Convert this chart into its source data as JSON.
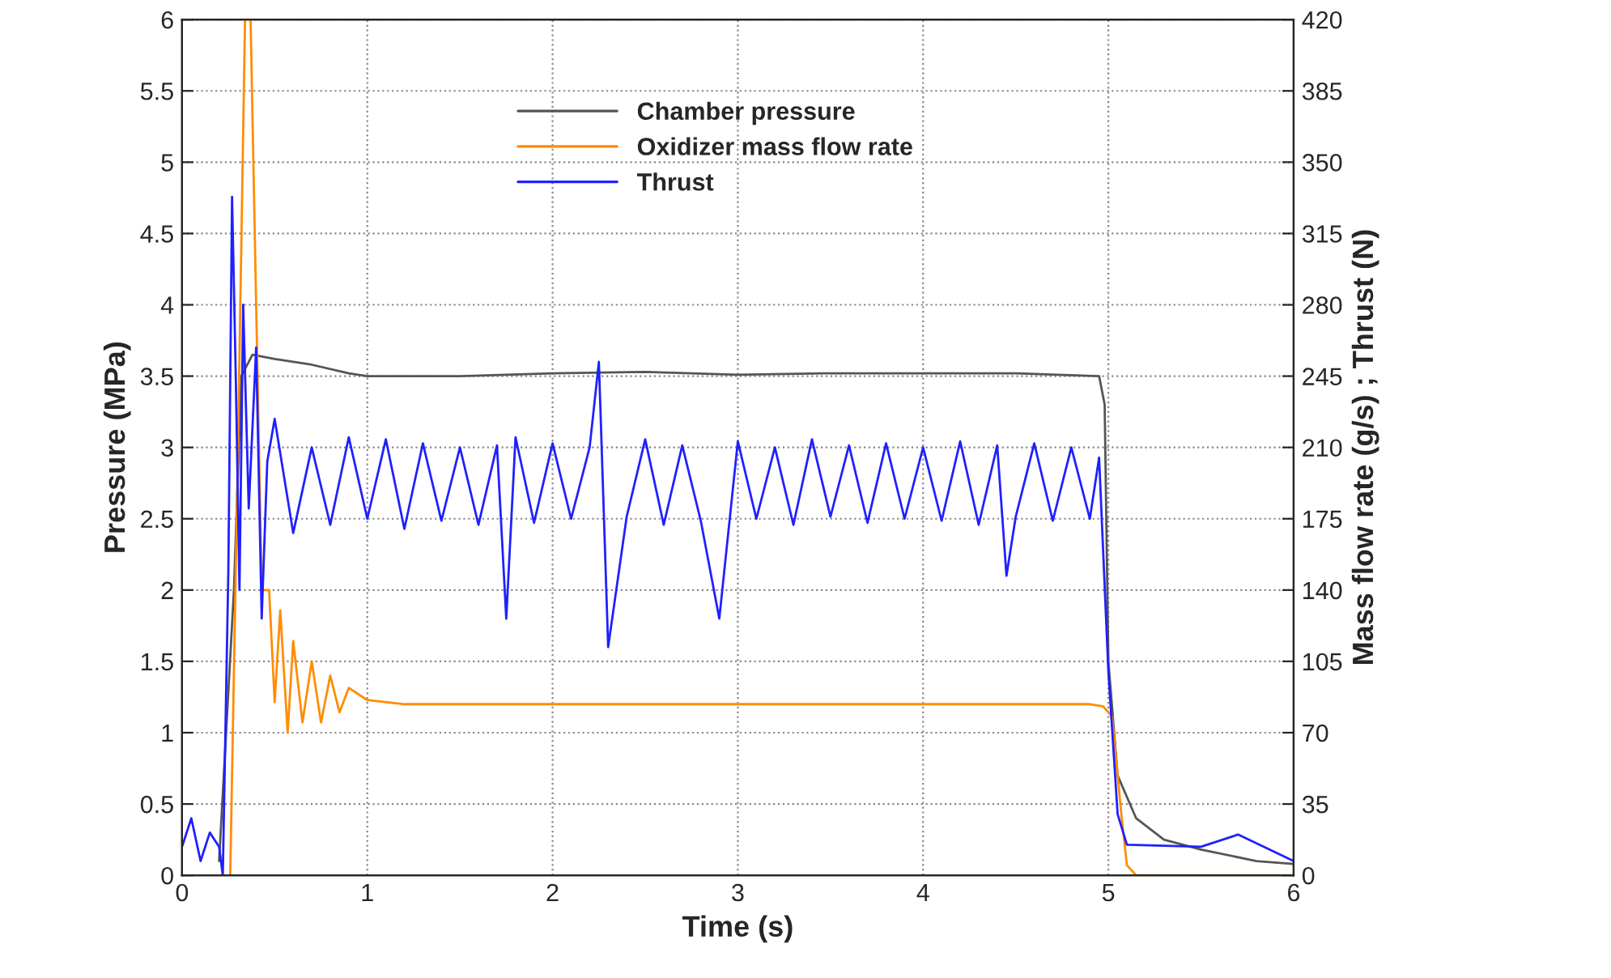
{
  "chart_data": {
    "type": "line",
    "xlabel": "Time (s)",
    "ylabel": "Pressure (MPa)",
    "y2label": "Mass flow rate (g/s) ; Thrust (N)",
    "xlim": [
      0,
      6
    ],
    "xticks": [
      0,
      1,
      2,
      3,
      4,
      5,
      6
    ],
    "ylim": [
      0,
      6
    ],
    "yticks": [
      0,
      0.5,
      1,
      1.5,
      2,
      2.5,
      3,
      3.5,
      4,
      4.5,
      5,
      5.5,
      6
    ],
    "y2lim": [
      0,
      420
    ],
    "y2ticks": [
      0,
      35,
      70,
      105,
      140,
      175,
      210,
      245,
      280,
      315,
      350,
      385,
      420
    ],
    "grid": true,
    "legend": "top",
    "marker": "none",
    "line_style": "solid",
    "series": [
      {
        "name": "Chamber pressure",
        "color": "#555555",
        "x": [
          0.2,
          0.28,
          0.32,
          0.38,
          0.5,
          0.7,
          0.9,
          1.0,
          1.5,
          2.0,
          2.5,
          3.0,
          3.5,
          4.0,
          4.5,
          4.95,
          4.98,
          5.0,
          5.05,
          5.15,
          5.3,
          5.5,
          5.8,
          6.0
        ],
        "values": [
          0.1,
          2.0,
          3.5,
          3.65,
          3.62,
          3.58,
          3.52,
          3.5,
          3.5,
          3.52,
          3.53,
          3.51,
          3.52,
          3.52,
          3.52,
          3.5,
          3.3,
          1.5,
          0.7,
          0.4,
          0.25,
          0.18,
          0.1,
          0.08
        ]
      },
      {
        "name": "Oxidizer mass flow rate",
        "color": "#ff8c00",
        "axis": "y2",
        "x": [
          0.26,
          0.3,
          0.34,
          0.37,
          0.4,
          0.43,
          0.47,
          0.5,
          0.53,
          0.57,
          0.6,
          0.65,
          0.7,
          0.75,
          0.8,
          0.85,
          0.9,
          1.0,
          1.2,
          1.5,
          2.0,
          2.5,
          3.0,
          3.5,
          4.0,
          4.5,
          4.9,
          4.97,
          5.02,
          5.07,
          5.1,
          5.15,
          6.0
        ],
        "values": [
          0,
          200,
          420,
          420,
          280,
          140,
          140,
          85,
          130,
          70,
          115,
          75,
          105,
          75,
          98,
          80,
          92,
          86,
          84,
          84,
          84,
          84,
          84,
          84,
          84,
          84,
          84,
          83,
          78,
          30,
          5,
          0,
          0
        ]
      },
      {
        "name": "Thrust",
        "color": "#2020ff",
        "axis": "y2",
        "x": [
          0,
          0.05,
          0.1,
          0.15,
          0.2,
          0.22,
          0.25,
          0.27,
          0.29,
          0.31,
          0.33,
          0.36,
          0.4,
          0.43,
          0.46,
          0.5,
          0.6,
          0.7,
          0.8,
          0.9,
          1.0,
          1.1,
          1.2,
          1.3,
          1.4,
          1.5,
          1.6,
          1.7,
          1.75,
          1.8,
          1.9,
          2.0,
          2.1,
          2.2,
          2.25,
          2.3,
          2.4,
          2.5,
          2.6,
          2.7,
          2.8,
          2.9,
          3.0,
          3.1,
          3.2,
          3.3,
          3.4,
          3.5,
          3.6,
          3.7,
          3.8,
          3.9,
          4.0,
          4.1,
          4.2,
          4.3,
          4.4,
          4.45,
          4.5,
          4.6,
          4.7,
          4.8,
          4.9,
          4.95,
          5.0,
          5.05,
          5.1,
          5.5,
          5.7,
          6.0
        ],
        "values": [
          14,
          28,
          7,
          21,
          14,
          0,
          150,
          333,
          245,
          140,
          280,
          180,
          259,
          126,
          203,
          224,
          168,
          210,
          172,
          215,
          175,
          214,
          170,
          212,
          174,
          210,
          172,
          211,
          126,
          215,
          173,
          212,
          175,
          210,
          252,
          112,
          176,
          214,
          172,
          211,
          174,
          126,
          213,
          175,
          210,
          172,
          214,
          176,
          211,
          173,
          212,
          175,
          210,
          174,
          213,
          172,
          211,
          147,
          176,
          212,
          174,
          210,
          175,
          205,
          100,
          30,
          15,
          14,
          20,
          7
        ]
      }
    ]
  }
}
